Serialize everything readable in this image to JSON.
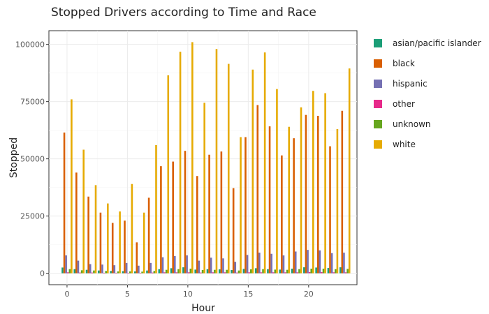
{
  "chart_data": {
    "type": "bar",
    "title": "Stopped Drivers according to Time and Race",
    "xlabel": "Hour",
    "ylabel": "Stopped",
    "x": [
      0,
      1,
      2,
      3,
      4,
      5,
      6,
      7,
      8,
      9,
      10,
      11,
      12,
      13,
      14,
      15,
      16,
      17,
      18,
      19,
      20,
      21,
      22,
      23
    ],
    "xticks": [
      0,
      5,
      10,
      15,
      20
    ],
    "xticklabels": [
      "0",
      "5",
      "10",
      "15",
      "20"
    ],
    "xlim": [
      -1.5,
      24
    ],
    "yticks": [
      0,
      25000,
      50000,
      75000,
      100000
    ],
    "yticklabels": [
      "0",
      "25000",
      "50000",
      "75000",
      "100000"
    ],
    "ylim": [
      -5000,
      106000
    ],
    "grid": true,
    "legend_position": "right",
    "series": [
      {
        "name": "asian/pacific islander",
        "color": "#1b9e77",
        "values": [
          2500,
          1800,
          1500,
          1200,
          1000,
          900,
          800,
          1200,
          1800,
          2200,
          2600,
          1600,
          1800,
          1700,
          1400,
          1900,
          2200,
          1800,
          1600,
          2000,
          2600,
          2500,
          2300,
          2600
        ]
      },
      {
        "name": "black",
        "color": "#d95f02",
        "values": [
          61500,
          44000,
          33500,
          26500,
          22000,
          23000,
          13500,
          33000,
          46800,
          48800,
          53500,
          42500,
          51800,
          53200,
          37200,
          59500,
          73500,
          64200,
          51500,
          59000,
          69200,
          68800,
          55500,
          71000
        ]
      },
      {
        "name": "hispanic",
        "color": "#7570b3",
        "values": [
          7800,
          5500,
          4000,
          3800,
          3500,
          4500,
          3300,
          4500,
          7000,
          7500,
          7800,
          5500,
          6800,
          6500,
          5000,
          8000,
          9000,
          8500,
          7800,
          9500,
          10200,
          10000,
          8800,
          9000
        ]
      },
      {
        "name": "other",
        "color": "#e7298a",
        "values": [
          400,
          300,
          300,
          200,
          200,
          200,
          200,
          300,
          400,
          400,
          400,
          300,
          400,
          400,
          300,
          400,
          400,
          400,
          400,
          400,
          500,
          500,
          400,
          400
        ]
      },
      {
        "name": "unknown",
        "color": "#66a61e",
        "values": [
          1800,
          1300,
          1200,
          1000,
          800,
          800,
          700,
          1000,
          1500,
          1800,
          2000,
          1400,
          1500,
          1500,
          1200,
          1700,
          1800,
          1600,
          1500,
          1800,
          2000,
          2000,
          1800,
          1900
        ]
      },
      {
        "name": "white",
        "color": "#e6ab02",
        "values": [
          76000,
          54000,
          38500,
          30500,
          27000,
          39000,
          26500,
          56000,
          86500,
          96800,
          101000,
          74500,
          98000,
          91500,
          59500,
          89000,
          96500,
          80500,
          64000,
          72500,
          79700,
          78700,
          63000,
          89500
        ]
      }
    ]
  }
}
